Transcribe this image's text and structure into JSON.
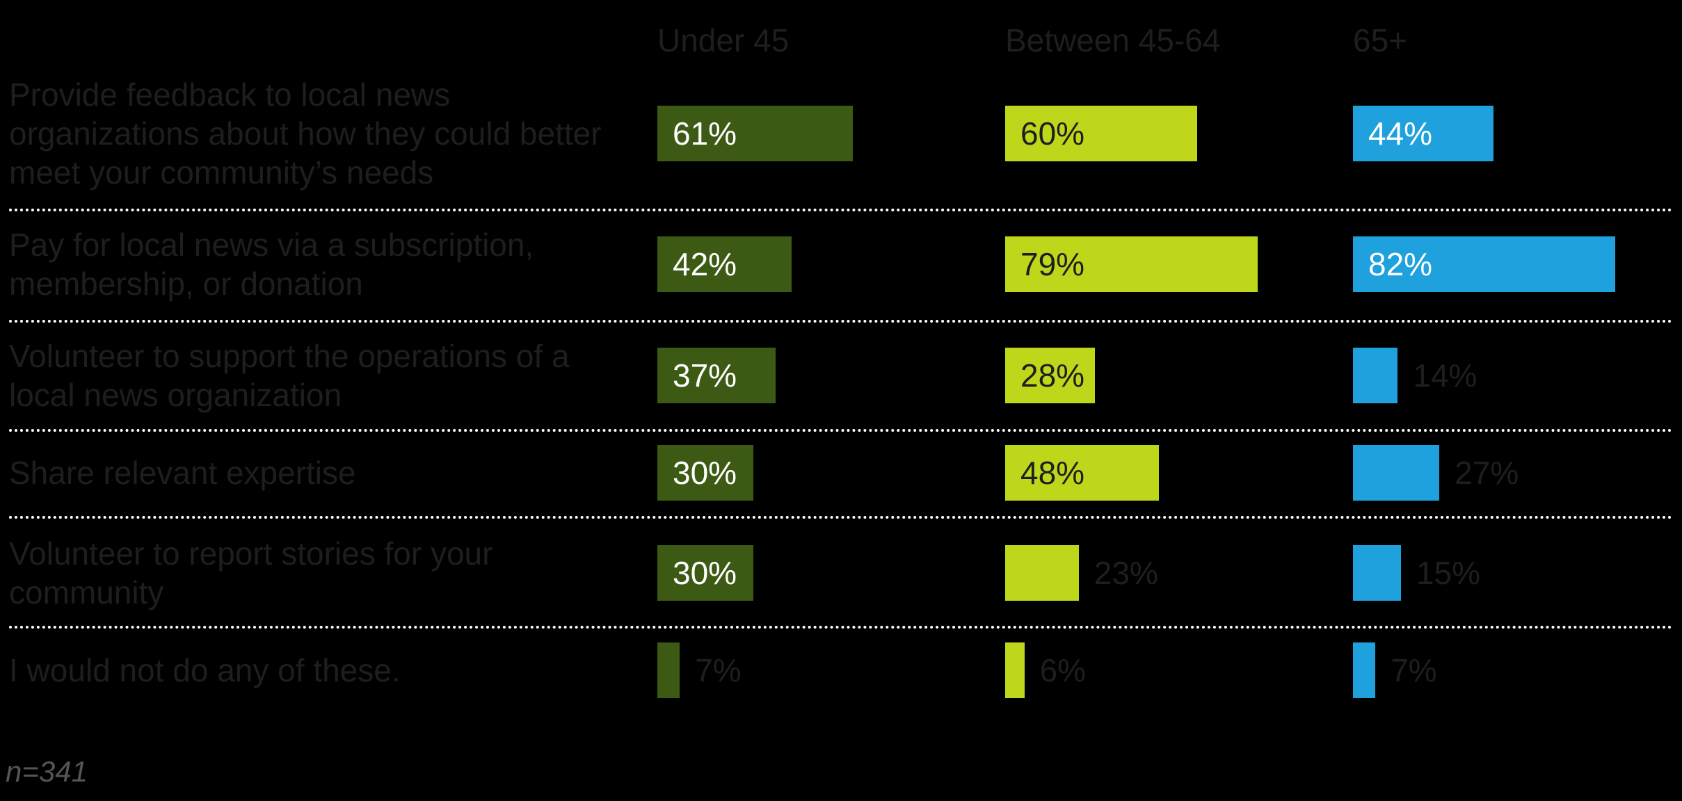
{
  "chart_data": {
    "type": "bar",
    "orientation": "horizontal",
    "categories": [
      "Provide feedback to local news organizations about how they could better meet your community’s needs",
      "Pay for local news via a subscription, membership, or donation",
      "Volunteer to support the operations of a local news organization",
      "Share relevant expertise",
      "Volunteer to report stories for your community",
      "I would not do any of these."
    ],
    "category_lines": [
      [
        "Provide feedback to local news",
        "organizations about how they could better",
        "meet your community’s needs"
      ],
      [
        "Pay for local news via a subscription,",
        "membership, or donation"
      ],
      [
        "Volunteer to support the operations of a",
        "local news organization"
      ],
      [
        "Share relevant expertise"
      ],
      [
        "Volunteer to report stories for your",
        "community"
      ],
      [
        "I would not do any of these."
      ]
    ],
    "series": [
      {
        "name": "Under 45",
        "values": [
          61,
          42,
          37,
          30,
          30,
          7
        ],
        "labels": [
          "61%",
          "42%",
          "37%",
          "30%",
          "30%",
          "7%"
        ],
        "color": "#3d5a14"
      },
      {
        "name": "Between 45-64",
        "values": [
          60,
          79,
          28,
          48,
          23,
          6
        ],
        "labels": [
          "60%",
          "79%",
          "28%",
          "48%",
          "23%",
          "6%"
        ],
        "color": "#bfd71b"
      },
      {
        "name": "65+",
        "values": [
          44,
          82,
          14,
          27,
          15,
          7
        ],
        "labels": [
          "44%",
          "82%",
          "14%",
          "27%",
          "15%",
          "7%"
        ],
        "color": "#1ea1dc"
      }
    ],
    "xlim": [
      0,
      100
    ],
    "grid": false,
    "legend": "top"
  },
  "note": "n=341"
}
